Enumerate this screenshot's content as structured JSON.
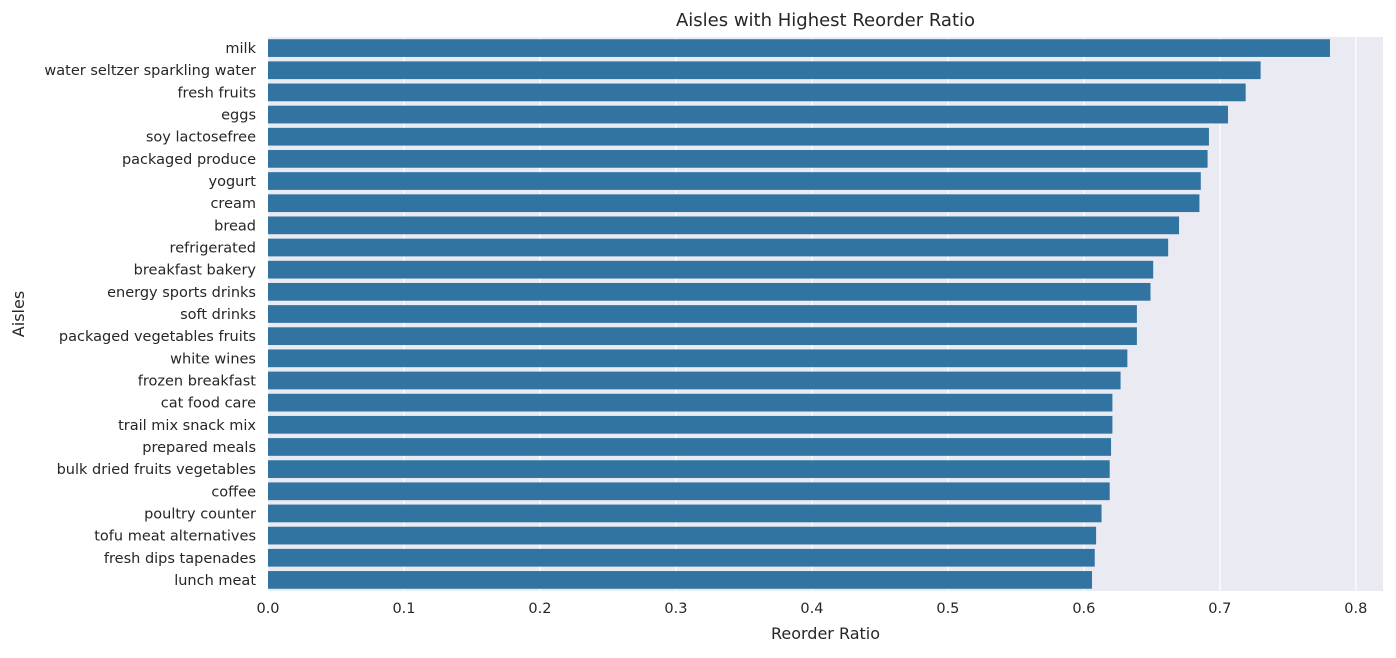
{
  "chart_data": {
    "type": "bar",
    "orientation": "horizontal",
    "title": "Aisles with Highest Reorder Ratio",
    "xlabel": "Reorder Ratio",
    "ylabel": "Aisles",
    "xlim": [
      0,
      0.82
    ],
    "xticks": [
      "0.0",
      "0.1",
      "0.2",
      "0.3",
      "0.4",
      "0.5",
      "0.6",
      "0.7",
      "0.8"
    ],
    "grid": true,
    "bar_color": "#3274a1",
    "background_color": "#eaeaf2",
    "categories": [
      "milk",
      "water seltzer sparkling water",
      "fresh fruits",
      "eggs",
      "soy lactosefree",
      "packaged produce",
      "yogurt",
      "cream",
      "bread",
      "refrigerated",
      "breakfast bakery",
      "energy sports drinks",
      "soft drinks",
      "packaged vegetables fruits",
      "white wines",
      "frozen breakfast",
      "cat food care",
      "trail mix snack mix",
      "prepared meals",
      "bulk dried fruits vegetables",
      "coffee",
      "poultry counter",
      "tofu meat alternatives",
      "fresh dips tapenades",
      "lunch meat"
    ],
    "values": [
      0.781,
      0.73,
      0.719,
      0.706,
      0.692,
      0.691,
      0.686,
      0.685,
      0.67,
      0.662,
      0.651,
      0.649,
      0.639,
      0.639,
      0.632,
      0.627,
      0.621,
      0.621,
      0.62,
      0.619,
      0.619,
      0.613,
      0.609,
      0.608,
      0.606
    ]
  }
}
